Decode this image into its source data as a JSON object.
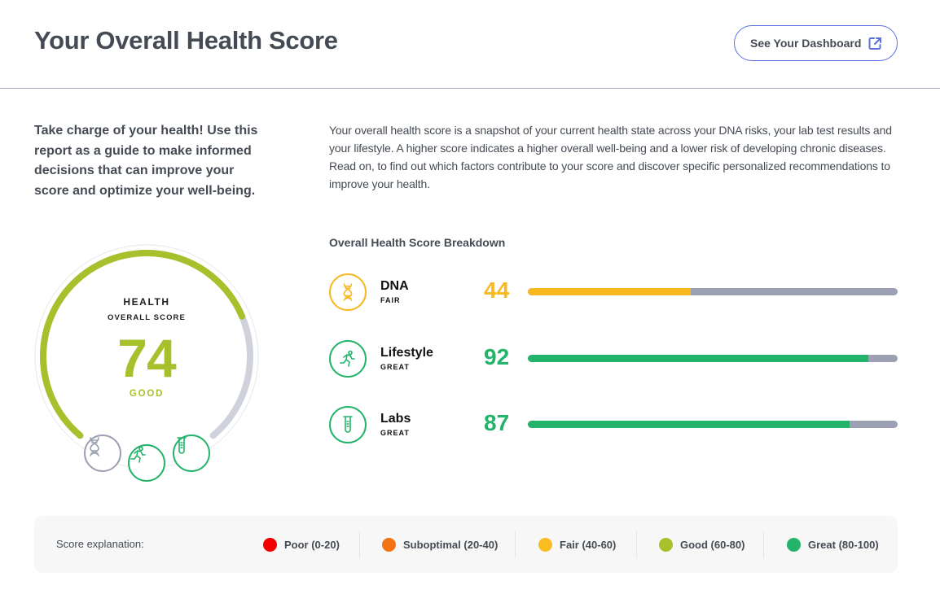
{
  "header": {
    "title": "Your Overall Health Score",
    "dashboard_button": "See Your Dashboard",
    "dashboard_icon": "external-link-icon"
  },
  "intro": {
    "lead": "Take charge of your health! Use this report as a guide to make informed decisions that can improve your score and optimize your well-being.",
    "description": "Your overall health score is a snapshot of your current health state across your DNA risks, your lab test results and your lifestyle. A higher score indicates a higher overall well-being and a lower risk of developing chronic diseases. Read on, to find out which factors contribute to your score and discover specific personalized recommendations to improve your health."
  },
  "gauge": {
    "label": "HEALTH",
    "sublabel": "OVERALL SCORE",
    "score": "74",
    "score_value": 74,
    "max": 100,
    "status": "GOOD",
    "color": "#a6c12b",
    "track_color": "#cfd2dc",
    "icons": [
      {
        "name": "dna-icon",
        "color": "#9ba0b2"
      },
      {
        "name": "running-icon",
        "color": "#23b36a"
      },
      {
        "name": "test-tube-icon",
        "color": "#23b36a"
      }
    ]
  },
  "breakdown": {
    "title": "Overall Health Score Breakdown",
    "rows": [
      {
        "name": "DNA",
        "status": "FAIR",
        "score": "44",
        "value": 44,
        "color": "#f8b820",
        "icon": "dna-icon"
      },
      {
        "name": "Lifestyle",
        "status": "GREAT",
        "score": "92",
        "value": 92,
        "color": "#23b36a",
        "icon": "running-icon"
      },
      {
        "name": "Labs",
        "status": "GREAT",
        "score": "87",
        "value": 87,
        "color": "#23b36a",
        "icon": "test-tube-icon"
      }
    ],
    "track_color": "#9ba0b2"
  },
  "legend": {
    "title": "Score explanation:",
    "items": [
      {
        "label": "Poor (0-20)",
        "color": "#f20000"
      },
      {
        "label": "Suboptimal (20-40)",
        "color": "#f47314"
      },
      {
        "label": "Fair (40-60)",
        "color": "#fbbb22"
      },
      {
        "label": "Good (60-80)",
        "color": "#a6c12b"
      },
      {
        "label": "Great (80-100)",
        "color": "#23b36a"
      }
    ]
  }
}
